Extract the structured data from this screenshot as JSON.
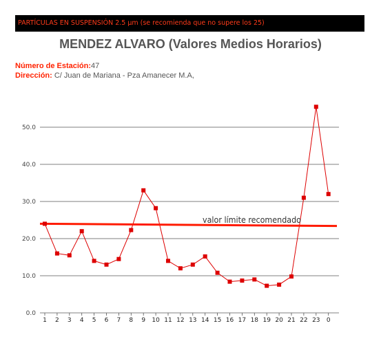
{
  "header": {
    "banner_text": "PARTÍCULAS EN SUSPENSIÓN 2.5 µm (se recomienda que no supere los 25)"
  },
  "station": {
    "title": "MENDEZ ALVARO (Valores Medios Horarios)",
    "number_label": "Número de Estación:",
    "number_value": "47",
    "address_label": "Dirección:",
    "address_value": "C/ Juan de Mariana - Pza Amanecer M.A,"
  },
  "colors": {
    "series": "#dd0000",
    "limit_line": "#ff1a00",
    "grid": "#555555",
    "banner_bg": "#000000",
    "banner_text": "#ff3b1a"
  },
  "chart_data": {
    "type": "line",
    "title": "",
    "xlabel": "",
    "ylabel": "",
    "x": [
      "1",
      "2",
      "3",
      "4",
      "5",
      "6",
      "7",
      "8",
      "9",
      "10",
      "11",
      "12",
      "13",
      "14",
      "15",
      "16",
      "17",
      "18",
      "19",
      "20",
      "21",
      "22",
      "23",
      "0"
    ],
    "yticks": [
      "0.0",
      "10.0",
      "20.0",
      "30.0",
      "40.0",
      "50.0"
    ],
    "ylim": [
      0,
      55
    ],
    "grid": true,
    "series": [
      {
        "values": [
          24.0,
          16.0,
          15.5,
          22.0,
          14.0,
          13.0,
          14.5,
          22.3,
          33.0,
          28.2,
          14.0,
          12.0,
          13.0,
          15.2,
          10.8,
          8.4,
          8.7,
          9.0,
          7.3,
          7.6,
          9.8,
          31.0,
          55.5,
          32.0
        ]
      }
    ],
    "annotations": [
      {
        "text": "valor límite recomendado",
        "start": 24.0,
        "end": 23.4
      }
    ]
  }
}
